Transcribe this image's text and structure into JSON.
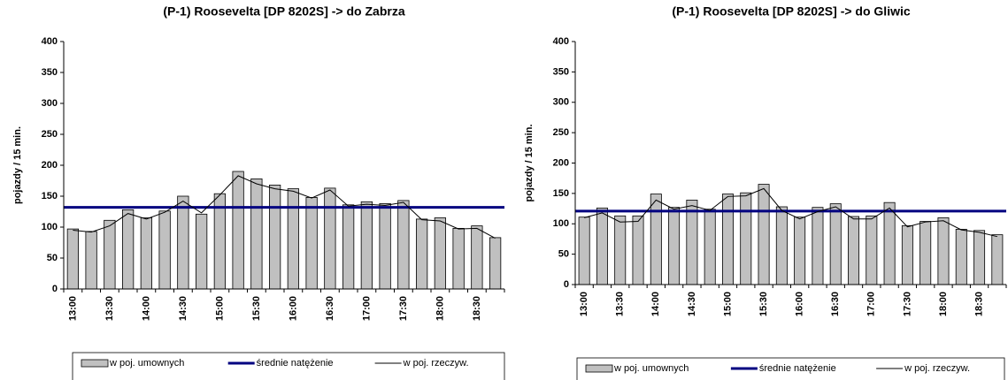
{
  "chart_data": [
    {
      "type": "bar",
      "title": "(P-1) Roosevelta [DP 8202S] -> do Zabrza",
      "y_label": "pojazdy / 15 min.",
      "categories": [
        "13:00",
        null,
        "13:30",
        null,
        "14:00",
        null,
        "14:30",
        null,
        "15:00",
        null,
        "15:30",
        null,
        "16:00",
        null,
        "16:30",
        null,
        "17:00",
        null,
        "17:30",
        null,
        "18:00",
        null,
        "18:30",
        null
      ],
      "series": [
        {
          "name": "w poj. umownych",
          "type": "bar",
          "color": "#c0c0c0",
          "values": [
            97,
            93,
            111,
            128,
            115,
            126,
            150,
            121,
            154,
            190,
            178,
            168,
            162,
            148,
            163,
            136,
            141,
            138,
            143,
            113,
            115,
            98,
            102,
            83
          ]
        },
        {
          "name": "średnie natężenie",
          "type": "hline",
          "color": "#000080",
          "value": 132
        },
        {
          "name": "w poj. rzeczyw.",
          "type": "line",
          "color": "#000000",
          "values": [
            95,
            92,
            102,
            122,
            113,
            124,
            142,
            123,
            152,
            183,
            170,
            162,
            158,
            147,
            160,
            134,
            137,
            135,
            140,
            112,
            110,
            97,
            98,
            82
          ]
        }
      ],
      "ylim": [
        0,
        400
      ],
      "yticks": [
        0,
        50,
        100,
        150,
        200,
        250,
        300,
        350,
        400
      ]
    },
    {
      "type": "bar",
      "title": "(P-1) Roosevelta [DP 8202S] -> do Gliwic",
      "y_label": "pojazdy / 15 min.",
      "categories": [
        "13:00",
        null,
        "13:30",
        null,
        "14:00",
        null,
        "14:30",
        null,
        "15:00",
        null,
        "15:30",
        null,
        "16:00",
        null,
        "16:30",
        null,
        "17:00",
        null,
        "17:30",
        null,
        "18:00",
        null,
        "18:30",
        null
      ],
      "series": [
        {
          "name": "w poj. umownych",
          "type": "bar",
          "color": "#c0c0c0",
          "values": [
            111,
            126,
            113,
            113,
            149,
            127,
            139,
            124,
            149,
            151,
            165,
            128,
            111,
            127,
            133,
            112,
            113,
            135,
            97,
            104,
            110,
            91,
            89,
            82
          ]
        },
        {
          "name": "średnie natężenie",
          "type": "hline",
          "color": "#000080",
          "value": 121
        },
        {
          "name": "w poj. rzeczyw.",
          "type": "line",
          "color": "#000000",
          "values": [
            110,
            118,
            103,
            104,
            139,
            124,
            130,
            122,
            145,
            146,
            158,
            122,
            108,
            120,
            128,
            108,
            108,
            126,
            95,
            103,
            105,
            90,
            86,
            79
          ]
        }
      ],
      "ylim": [
        0,
        400
      ],
      "yticks": [
        0,
        50,
        100,
        150,
        200,
        250,
        300,
        350,
        400
      ]
    }
  ]
}
